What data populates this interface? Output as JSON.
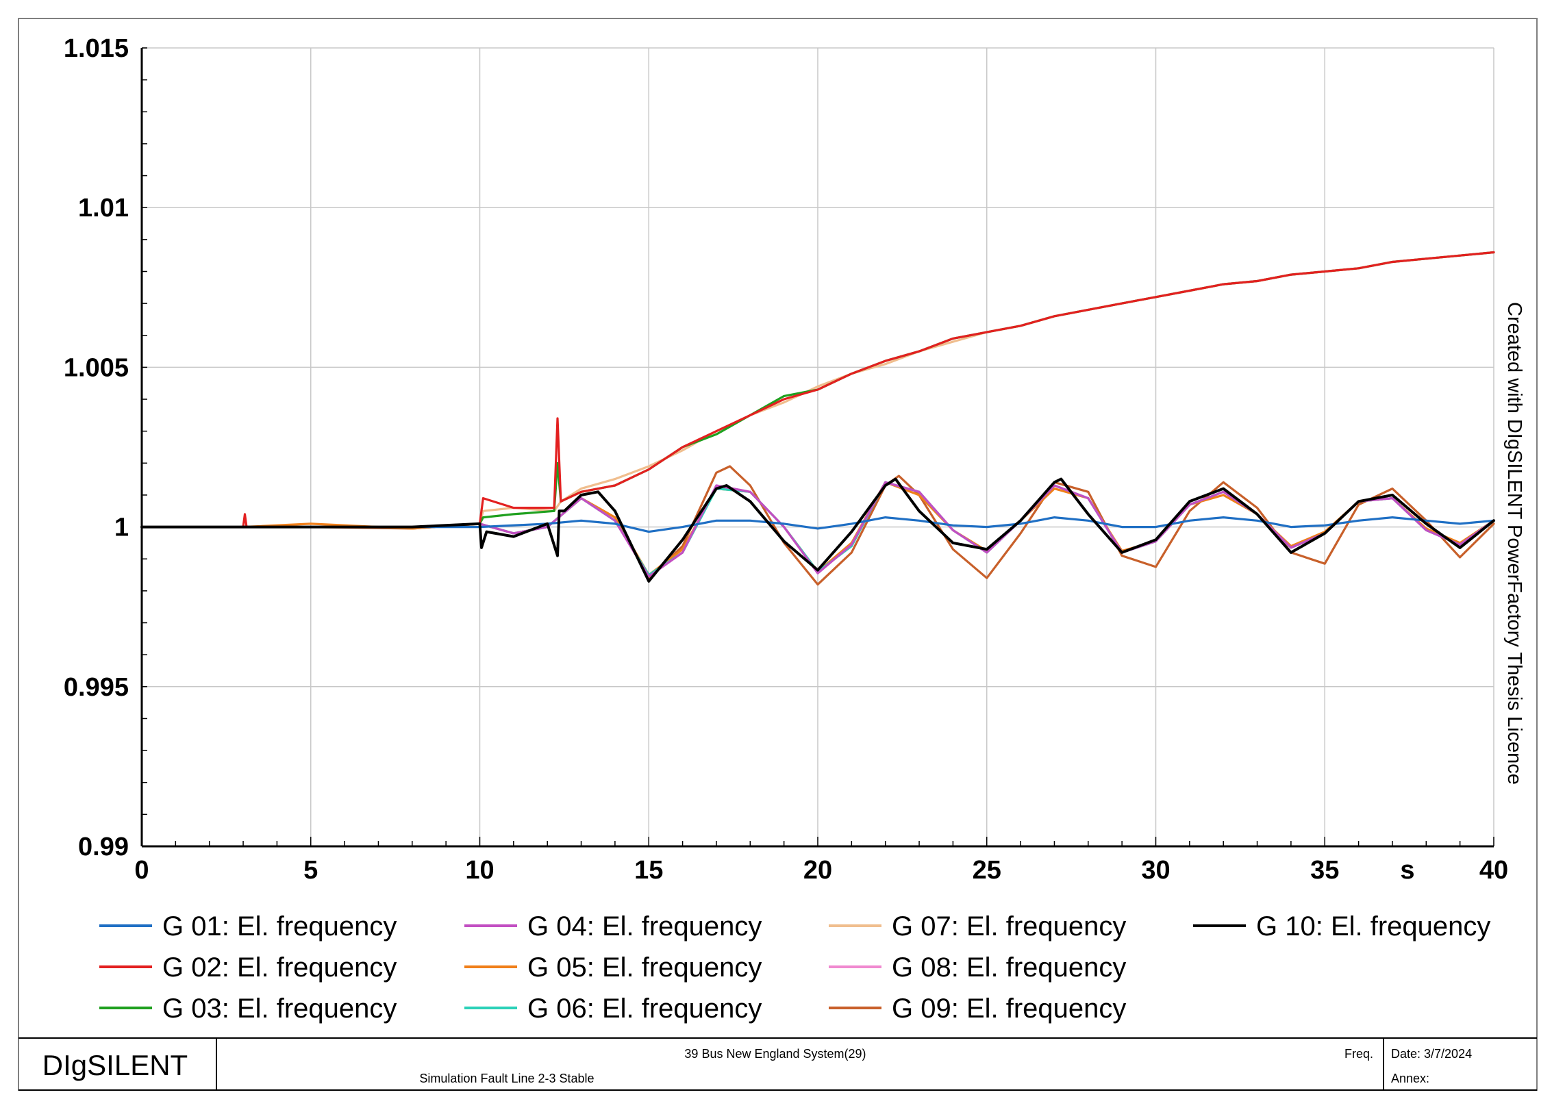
{
  "chart_data": {
    "type": "line",
    "title": "",
    "xlabel": "s",
    "ylabel": "",
    "xlim": [
      0,
      40
    ],
    "ylim": [
      0.99,
      1.015
    ],
    "x_ticks": [
      0,
      5,
      10,
      15,
      20,
      25,
      30,
      35,
      40
    ],
    "x_tick_labels": [
      "0",
      "5",
      "10",
      "15",
      "20",
      "25",
      "30",
      "35",
      "40"
    ],
    "y_ticks": [
      0.99,
      0.995,
      1,
      1.005,
      1.01,
      1.015
    ],
    "y_tick_labels": [
      "0.99",
      "0.995",
      "1",
      "1.005",
      "1.01",
      "1.015"
    ],
    "grid": true,
    "legend_position": "bottom",
    "series": [
      {
        "name": "G 01: El. frequency",
        "color": "#1f6fc4",
        "x": [
          0,
          3,
          5,
          8,
          10,
          12,
          13,
          14,
          15,
          16,
          17,
          18,
          19,
          20,
          21,
          22,
          23,
          24,
          25,
          26,
          27,
          28,
          29,
          30,
          31,
          32,
          33,
          34,
          35,
          36,
          37,
          38,
          39,
          40
        ],
        "y": [
          1,
          1,
          1,
          1,
          1,
          1.0001,
          1.0002,
          1.0001,
          0.99985,
          1.0,
          1.0002,
          1.0002,
          1.0001,
          0.99995,
          1.0001,
          1.0003,
          1.0002,
          1.00005,
          1.0,
          1.0001,
          1.0003,
          1.0002,
          1.0,
          1.0,
          1.0002,
          1.0003,
          1.0002,
          1.0,
          1.00005,
          1.0002,
          1.0003,
          1.0002,
          1.0001,
          1.0002
        ]
      },
      {
        "name": "G 02: El. frequency",
        "color": "#e32020",
        "x": [
          0,
          3,
          3.05,
          3.1,
          5,
          8,
          10,
          10.1,
          11,
          12.2,
          12.3,
          12.4,
          13,
          14,
          15,
          16,
          17,
          18,
          19,
          20,
          21,
          22,
          23,
          24,
          25,
          26,
          27,
          28,
          29,
          30,
          31,
          32,
          33,
          34,
          35,
          36,
          37,
          38,
          39,
          40
        ],
        "y": [
          1,
          1,
          1.0004,
          1.0,
          1.0,
          1.0,
          1.0001,
          1.0009,
          1.0006,
          1.0006,
          1.0034,
          1.0008,
          1.0011,
          1.0013,
          1.0018,
          1.0025,
          1.003,
          1.0035,
          1.004,
          1.0043,
          1.0048,
          1.0052,
          1.0055,
          1.0059,
          1.0061,
          1.0063,
          1.0066,
          1.0068,
          1.007,
          1.0072,
          1.0074,
          1.0076,
          1.0077,
          1.0079,
          1.008,
          1.0081,
          1.0083,
          1.0084,
          1.0085,
          1.0086
        ]
      },
      {
        "name": "G 03: El. frequency",
        "color": "#1fa01f",
        "x": [
          0,
          3,
          5,
          8,
          10,
          10.1,
          11,
          12.2,
          12.3,
          12.4,
          13,
          14,
          15,
          16,
          17,
          18,
          19,
          20,
          21,
          22,
          23,
          24,
          25,
          26,
          27,
          28,
          29,
          30,
          31,
          32,
          33,
          34,
          35,
          36,
          37,
          38,
          39,
          40
        ],
        "y": [
          1,
          1,
          1.0,
          1.0,
          1.0001,
          1.0003,
          1.0004,
          1.0005,
          1.002,
          1.0008,
          1.0011,
          1.0013,
          1.0018,
          1.0025,
          1.0029,
          1.0035,
          1.0041,
          1.0043,
          1.0048,
          1.0052,
          1.0055,
          1.0059,
          1.0061,
          1.0063,
          1.0066,
          1.0068,
          1.007,
          1.0072,
          1.0074,
          1.0076,
          1.0077,
          1.0079,
          1.008,
          1.0081,
          1.0083,
          1.0084,
          1.0085,
          1.0086
        ]
      },
      {
        "name": "G 04: El. frequency",
        "color": "#c24fc2",
        "x": [
          0,
          3,
          5,
          8,
          10,
          11,
          12,
          13,
          14,
          15,
          16,
          17,
          18,
          19,
          20,
          21,
          22,
          23,
          24,
          25,
          26,
          27,
          28,
          29,
          30,
          31,
          32,
          33,
          34,
          35,
          36,
          37,
          38,
          39,
          40
        ],
        "y": [
          1,
          1,
          1.0,
          1.0,
          1.0001,
          0.9998,
          1.0,
          1.0009,
          1.0002,
          0.99845,
          0.9992,
          1.0013,
          1.0011,
          1.0,
          0.99855,
          0.99945,
          1.0014,
          1.0011,
          0.9999,
          0.9992,
          1.0002,
          1.0013,
          1.0009,
          0.9992,
          0.99955,
          1.0007,
          1.0011,
          1.0004,
          0.99935,
          0.9998,
          1.0008,
          1.0009,
          0.9999,
          0.99945,
          1.0002
        ]
      },
      {
        "name": "G 05: El. frequency",
        "color": "#f07f1a",
        "x": [
          0,
          3,
          5,
          8,
          10,
          11,
          12,
          13,
          14,
          15,
          16,
          17,
          18,
          19,
          20,
          21,
          22,
          23,
          24,
          25,
          26,
          27,
          28,
          29,
          30,
          31,
          32,
          33,
          34,
          35,
          36,
          37,
          38,
          39,
          40
        ],
        "y": [
          1,
          1,
          1.0001,
          0.99995,
          1.0001,
          0.9998,
          1.0,
          1.0009,
          1.0003,
          0.9985,
          0.9993,
          1.0012,
          1.0011,
          1.0,
          0.9986,
          0.9995,
          1.0014,
          1.001,
          0.9999,
          0.99925,
          1.0002,
          1.0012,
          1.0009,
          0.99925,
          0.99955,
          1.0007,
          1.001,
          1.0004,
          0.9994,
          0.99985,
          1.0008,
          1.0009,
          0.99995,
          0.9995,
          1.0002
        ]
      },
      {
        "name": "G 06: El. frequency",
        "color": "#2bd1b8",
        "x": [
          0,
          3,
          5,
          8,
          10,
          11,
          12,
          13,
          14,
          15,
          16,
          17,
          18,
          19,
          20,
          21,
          22,
          23,
          24,
          25,
          26,
          27,
          28,
          29,
          30,
          31,
          32,
          33,
          34,
          35,
          36,
          37,
          38,
          39,
          40
        ],
        "y": [
          1,
          1,
          1.0,
          1.0,
          1.0001,
          0.9998,
          1.0,
          1.0009,
          1.0002,
          0.9985,
          0.9992,
          1.0012,
          1.0011,
          1.0,
          0.9986,
          0.9994,
          1.0014,
          1.0011,
          0.9999,
          0.9992,
          1.0002,
          1.0013,
          1.0009,
          0.9992,
          0.99955,
          1.0007,
          1.0011,
          1.0004,
          0.99935,
          0.9998,
          1.0008,
          1.0009,
          0.9999,
          0.99945,
          1.0002
        ]
      },
      {
        "name": "G 07: El. frequency",
        "color": "#f0be8e",
        "x": [
          0,
          3,
          5,
          8,
          10,
          10.1,
          11,
          12.2,
          12.4,
          13,
          14,
          15,
          16,
          17,
          18,
          19,
          20,
          21,
          22,
          23,
          24,
          25,
          26,
          27,
          28,
          29,
          30,
          31,
          32,
          33,
          34,
          35,
          36,
          37,
          38,
          39,
          40
        ],
        "y": [
          1,
          1,
          1.0,
          1.0,
          1.0001,
          1.0005,
          1.0006,
          1.0005,
          1.0008,
          1.0012,
          1.0015,
          1.0019,
          1.0024,
          1.003,
          1.0035,
          1.0039,
          1.0044,
          1.0048,
          1.0051,
          1.0055,
          1.0058,
          1.0061,
          1.0063,
          1.0066,
          1.0068,
          1.007,
          1.0072,
          1.0074,
          1.0076,
          1.0077,
          1.0079,
          1.008,
          1.0081,
          1.0083,
          1.0084,
          1.0085,
          1.0086
        ]
      },
      {
        "name": "G 08: El. frequency",
        "color": "#f08ad0",
        "x": [
          0,
          3,
          5,
          8,
          10,
          11,
          12,
          13,
          14,
          15,
          16,
          17,
          18,
          19,
          20,
          21,
          22,
          23,
          24,
          25,
          26,
          27,
          28,
          29,
          30,
          31,
          32,
          33,
          34,
          35,
          36,
          37,
          38,
          39,
          40
        ],
        "y": [
          1,
          1,
          1.0,
          1.0,
          1.0001,
          0.9998,
          1.0,
          1.0009,
          1.0002,
          0.99845,
          0.9992,
          1.0013,
          1.0011,
          1.0,
          0.99855,
          0.99945,
          1.0014,
          1.0011,
          0.9999,
          0.9992,
          1.0002,
          1.0013,
          1.0009,
          0.9992,
          0.99955,
          1.0007,
          1.0011,
          1.0004,
          0.99935,
          0.9998,
          1.0008,
          1.0009,
          0.9999,
          0.99945,
          1.0002
        ]
      },
      {
        "name": "G 09: El. frequency",
        "color": "#c8602a",
        "x": [
          0,
          3,
          5,
          8,
          10,
          11,
          12,
          13,
          14,
          15,
          16,
          17,
          17.4,
          18,
          19,
          20,
          21,
          22,
          22.4,
          23,
          24,
          25,
          26,
          27,
          28,
          29,
          30,
          31,
          32,
          33,
          34,
          35,
          36,
          37,
          38,
          39,
          40
        ],
        "y": [
          1,
          1,
          1.0,
          0.99995,
          1.0001,
          0.9998,
          1.0,
          1.0009,
          1.0003,
          0.9984,
          0.9994,
          1.0017,
          1.0019,
          1.0013,
          0.9995,
          0.9982,
          0.9992,
          1.0013,
          1.0016,
          1.001,
          0.9993,
          0.9984,
          0.9998,
          1.0014,
          1.0011,
          0.9991,
          0.99875,
          1.0005,
          1.0014,
          1.0006,
          0.9992,
          0.99885,
          1.0007,
          1.0012,
          1.0002,
          0.99905,
          1.0001
        ]
      },
      {
        "name": "G 10: El. frequency",
        "color": "#000000",
        "x": [
          0,
          3,
          5,
          8,
          10,
          10.05,
          10.2,
          11,
          12,
          12.3,
          12.35,
          12.5,
          13,
          13.5,
          14,
          15,
          16,
          17,
          17.3,
          18,
          19,
          20,
          21,
          22,
          22.3,
          23,
          24,
          25,
          26,
          27,
          27.2,
          28,
          29,
          30,
          31,
          32,
          33,
          34,
          35,
          36,
          37,
          38,
          39,
          40
        ],
        "y": [
          1,
          1,
          1.0,
          1.0,
          1.0001,
          0.99935,
          0.99985,
          0.9997,
          1.0001,
          0.9991,
          1.0005,
          1.0005,
          1.001,
          1.0011,
          1.0005,
          0.9983,
          0.9996,
          1.0012,
          1.0013,
          1.0008,
          0.99955,
          0.99865,
          0.99985,
          1.0013,
          1.0015,
          1.0005,
          0.9995,
          0.9993,
          1.0002,
          1.0014,
          1.0015,
          1.0004,
          0.9992,
          0.9996,
          1.0008,
          1.0012,
          1.0004,
          0.9992,
          0.9998,
          1.0008,
          1.001,
          1.0001,
          0.99935,
          1.0002
        ]
      }
    ]
  },
  "axis": {
    "x_unit": "s"
  },
  "watermark": "Created with DIgSILENT PowerFactory Thesis Licence",
  "footer": {
    "brand": "DIgSILENT",
    "project": "39 Bus New England System(29)",
    "study_case": "Simulation Fault Line 2-3 Stable",
    "page_label": "Freq.",
    "date": "Date: 3/7/2024",
    "annex": "Annex:"
  }
}
